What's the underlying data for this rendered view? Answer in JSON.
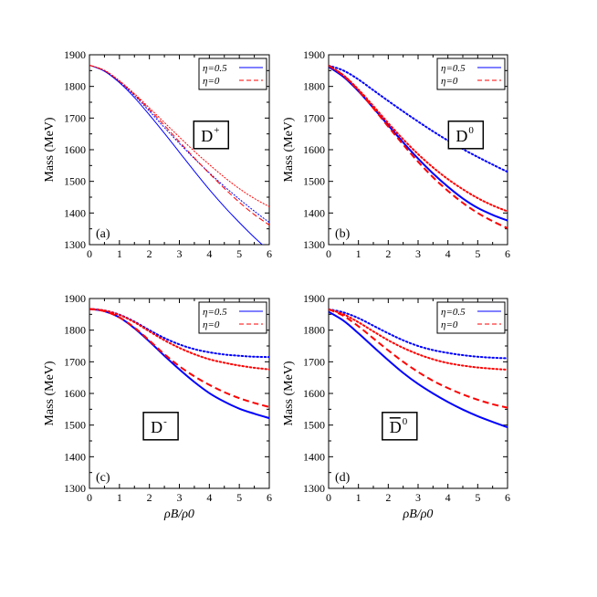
{
  "figure": {
    "xlabel": "ρB/ρ0",
    "ylabel": "Mass (MeV)"
  },
  "legend": {
    "entries": [
      {
        "label": "η=0.5",
        "color": "#0000ff",
        "dash": "solid"
      },
      {
        "label": "η=0",
        "color": "#ff0000",
        "dash": "dashed"
      }
    ]
  },
  "chart_data": [
    {
      "type": "line",
      "panel_label": "(a)",
      "particle_label": "D",
      "particle_sup": "+",
      "particle_bar": false,
      "xlim": [
        0,
        6
      ],
      "ylim": [
        1300,
        1900
      ],
      "xticks": [
        0,
        1,
        2,
        3,
        4,
        5,
        6
      ],
      "yticks": [
        1300,
        1400,
        1500,
        1600,
        1700,
        1800,
        1900
      ],
      "x": [
        0,
        0.5,
        1,
        1.5,
        2,
        2.5,
        3,
        3.5,
        4,
        4.5,
        5,
        5.5,
        6
      ],
      "series": [
        {
          "name": "η=0.5",
          "color": "#0000ff",
          "style": "solid",
          "width": 1,
          "values": [
            1867,
            1848,
            1812,
            1765,
            1710,
            1652,
            1592,
            1532,
            1474,
            1420,
            1370,
            1323,
            1280
          ]
        },
        {
          "name": "",
          "color": "#0000ff",
          "style": "dotted",
          "width": 1,
          "values": [
            1867,
            1850,
            1815,
            1771,
            1722,
            1670,
            1620,
            1572,
            1527,
            1484,
            1444,
            1406,
            1370
          ]
        },
        {
          "name": "η=0",
          "color": "#ff0000",
          "style": "dashed",
          "width": 1,
          "values": [
            1867,
            1850,
            1816,
            1774,
            1727,
            1677,
            1625,
            1574,
            1525,
            1478,
            1434,
            1395,
            1362
          ]
        },
        {
          "name": "",
          "color": "#ff0000",
          "style": "dotted",
          "width": 1,
          "values": [
            1867,
            1851,
            1818,
            1777,
            1732,
            1686,
            1640,
            1595,
            1553,
            1513,
            1477,
            1446,
            1420
          ]
        }
      ]
    },
    {
      "type": "line",
      "panel_label": "(b)",
      "particle_label": "D",
      "particle_sup": "0",
      "particle_bar": false,
      "xlim": [
        0,
        6
      ],
      "ylim": [
        1300,
        1900
      ],
      "xticks": [
        0,
        1,
        2,
        3,
        4,
        5,
        6
      ],
      "yticks": [
        1300,
        1400,
        1500,
        1600,
        1700,
        1800,
        1900
      ],
      "x": [
        0,
        0.5,
        1,
        1.5,
        2,
        2.5,
        3,
        3.5,
        4,
        4.5,
        5,
        5.5,
        6
      ],
      "series": [
        {
          "name": "η=0.5",
          "color": "#0000ff",
          "style": "solid",
          "width": 2,
          "values": [
            1862,
            1830,
            1785,
            1732,
            1677,
            1623,
            1572,
            1525,
            1483,
            1446,
            1416,
            1394,
            1376
          ]
        },
        {
          "name": "",
          "color": "#0000ff",
          "style": "dotted",
          "width": 2,
          "values": [
            1866,
            1850,
            1822,
            1788,
            1754,
            1721,
            1689,
            1658,
            1629,
            1602,
            1577,
            1553,
            1530
          ]
        },
        {
          "name": "η=0",
          "color": "#ff0000",
          "style": "dashed",
          "width": 2,
          "values": [
            1866,
            1834,
            1787,
            1731,
            1673,
            1616,
            1562,
            1513,
            1470,
            1432,
            1400,
            1374,
            1352
          ]
        },
        {
          "name": "",
          "color": "#ff0000",
          "style": "dotted",
          "width": 2,
          "values": [
            1866,
            1835,
            1790,
            1738,
            1684,
            1633,
            1586,
            1544,
            1507,
            1475,
            1447,
            1424,
            1405
          ]
        }
      ]
    },
    {
      "type": "line",
      "panel_label": "(c)",
      "particle_label": "D",
      "particle_sup": "-",
      "particle_bar": false,
      "xlim": [
        0,
        6
      ],
      "ylim": [
        1300,
        1900
      ],
      "xticks": [
        0,
        1,
        2,
        3,
        4,
        5,
        6
      ],
      "yticks": [
        1300,
        1400,
        1500,
        1600,
        1700,
        1800,
        1900
      ],
      "x": [
        0,
        0.5,
        1,
        1.5,
        2,
        2.5,
        3,
        3.5,
        4,
        4.5,
        5,
        5.5,
        6
      ],
      "series": [
        {
          "name": "η=0.5",
          "color": "#0000ff",
          "style": "solid",
          "width": 2,
          "values": [
            1867,
            1860,
            1840,
            1806,
            1764,
            1719,
            1676,
            1636,
            1601,
            1574,
            1552,
            1536,
            1522
          ]
        },
        {
          "name": "",
          "color": "#0000ff",
          "style": "dotted",
          "width": 2,
          "values": [
            1867,
            1862,
            1849,
            1827,
            1800,
            1775,
            1755,
            1740,
            1730,
            1723,
            1719,
            1716,
            1715
          ]
        },
        {
          "name": "η=0",
          "color": "#ff0000",
          "style": "dashed",
          "width": 2,
          "values": [
            1867,
            1860,
            1840,
            1808,
            1767,
            1724,
            1686,
            1654,
            1627,
            1604,
            1585,
            1570,
            1557
          ]
        },
        {
          "name": "",
          "color": "#ff0000",
          "style": "dotted",
          "width": 2,
          "values": [
            1867,
            1862,
            1848,
            1825,
            1796,
            1768,
            1744,
            1724,
            1708,
            1697,
            1688,
            1681,
            1676
          ]
        }
      ]
    },
    {
      "type": "line",
      "panel_label": "(d)",
      "particle_label": "D",
      "particle_sup": "0",
      "particle_bar": true,
      "xlim": [
        0,
        6
      ],
      "ylim": [
        1300,
        1900
      ],
      "xticks": [
        0,
        1,
        2,
        3,
        4,
        5,
        6
      ],
      "yticks": [
        1300,
        1400,
        1500,
        1600,
        1700,
        1800,
        1900
      ],
      "x": [
        0,
        0.5,
        1,
        1.5,
        2,
        2.5,
        3,
        3.5,
        4,
        4.5,
        5,
        5.5,
        6
      ],
      "series": [
        {
          "name": "η=0.5",
          "color": "#0000ff",
          "style": "solid",
          "width": 2,
          "values": [
            1858,
            1830,
            1790,
            1747,
            1705,
            1665,
            1630,
            1600,
            1573,
            1549,
            1528,
            1510,
            1493
          ]
        },
        {
          "name": "",
          "color": "#0000ff",
          "style": "dotted",
          "width": 2,
          "values": [
            1866,
            1856,
            1838,
            1814,
            1790,
            1768,
            1750,
            1737,
            1728,
            1721,
            1716,
            1713,
            1711
          ]
        },
        {
          "name": "η=0",
          "color": "#ff0000",
          "style": "dashed",
          "width": 2,
          "values": [
            1866,
            1845,
            1812,
            1774,
            1736,
            1700,
            1668,
            1640,
            1617,
            1597,
            1580,
            1566,
            1555
          ]
        },
        {
          "name": "",
          "color": "#ff0000",
          "style": "dotted",
          "width": 2,
          "values": [
            1866,
            1850,
            1825,
            1796,
            1768,
            1744,
            1724,
            1708,
            1696,
            1688,
            1682,
            1678,
            1675
          ]
        }
      ]
    }
  ]
}
